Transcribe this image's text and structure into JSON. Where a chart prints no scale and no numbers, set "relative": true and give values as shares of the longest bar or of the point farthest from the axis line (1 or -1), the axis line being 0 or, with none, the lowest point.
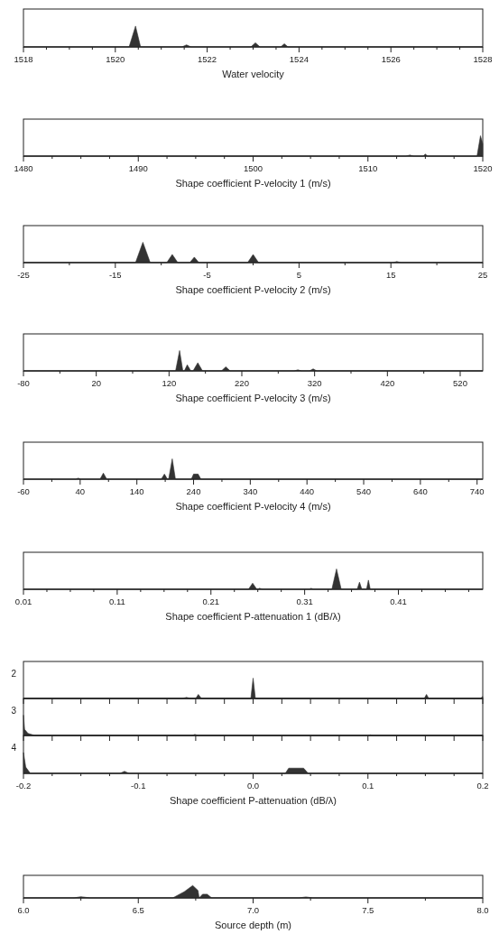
{
  "chart_data": [
    {
      "type": "area",
      "relative": true,
      "color": "#333333",
      "tick_labels": "x",
      "xlabel": "Water velocity",
      "xlim": [
        1518,
        1528
      ],
      "xticks": [
        1518,
        {
          "value": 1518.5,
          "label": null
        },
        {
          "value": 1519,
          "label": null
        },
        {
          "value": 1519.5,
          "label": null
        },
        1520,
        {
          "value": 1520.5,
          "label": null
        },
        {
          "value": 1521,
          "label": null
        },
        {
          "value": 1521.5,
          "label": null
        },
        1522,
        {
          "value": 1522.5,
          "label": null
        },
        {
          "value": 1523,
          "label": null
        },
        {
          "value": 1523.5,
          "label": null
        },
        1524,
        {
          "value": 1524.5,
          "label": null
        },
        {
          "value": 1525,
          "label": null
        },
        {
          "value": 1525.5,
          "label": null
        },
        1526,
        {
          "value": 1526.5,
          "label": null
        },
        {
          "value": 1527,
          "label": null
        },
        {
          "value": 1527.5,
          "label": null
        },
        1528
      ],
      "x": [
        1518,
        1520.3,
        1520.44,
        1520.55,
        1521.45,
        1521.55,
        1521.65,
        1522.95,
        1523.05,
        1523.15,
        1523.6,
        1523.68,
        1523.76,
        1528
      ],
      "values": [
        0,
        0,
        1,
        0,
        0,
        0.1,
        0,
        0,
        0.2,
        0,
        0,
        0.15,
        0,
        0
      ]
    },
    {
      "type": "area",
      "relative": true,
      "color": "#333333",
      "tick_labels": "x",
      "xlabel": "Shape coefficient P-velocity 1 (m/s)",
      "xlim": [
        1480,
        1520
      ],
      "xticks": [
        1480,
        {
          "value": 1482.5,
          "label": null
        },
        {
          "value": 1485,
          "label": null
        },
        {
          "value": 1487.5,
          "label": null
        },
        1490,
        {
          "value": 1492.5,
          "label": null
        },
        {
          "value": 1495,
          "label": null
        },
        {
          "value": 1497.5,
          "label": null
        },
        1500,
        {
          "value": 1502.5,
          "label": null
        },
        {
          "value": 1505,
          "label": null
        },
        {
          "value": 1507.5,
          "label": null
        },
        1510,
        {
          "value": 1512.5,
          "label": null
        },
        {
          "value": 1515,
          "label": null
        },
        {
          "value": 1517.5,
          "label": null
        },
        1520
      ],
      "x": [
        1480,
        1489.8,
        1490,
        1490.2,
        1513.3,
        1513.65,
        1514,
        1514.8,
        1515,
        1515.2,
        1519.5,
        1519.8,
        1520
      ],
      "values": [
        0,
        0,
        0.03,
        0,
        0,
        0.05,
        0,
        0,
        0.1,
        0,
        0,
        1,
        0.6
      ]
    },
    {
      "type": "area",
      "relative": true,
      "color": "#333333",
      "tick_labels": "x",
      "xlabel": "Shape coefficient P-velocity 2 (m/s)",
      "xlim": [
        -25,
        25
      ],
      "xticks": [
        -25,
        {
          "value": -20,
          "label": null
        },
        -15,
        {
          "value": -10,
          "label": null
        },
        -5,
        {
          "value": 0,
          "label": null
        },
        5,
        {
          "value": 10,
          "label": null
        },
        15,
        {
          "value": 20,
          "label": null
        },
        25
      ],
      "x": [
        -25,
        -12.8,
        -12,
        -11.2,
        -9.4,
        -8.8,
        -8.2,
        -6.9,
        -6.4,
        -5.9,
        -0.6,
        0,
        0.6,
        15.2,
        15.65,
        16.1,
        25
      ],
      "values": [
        0,
        0,
        1,
        0,
        0,
        0.4,
        0,
        0,
        0.27,
        0,
        0,
        0.4,
        0,
        0,
        0.05,
        0,
        0
      ]
    },
    {
      "type": "area",
      "relative": true,
      "color": "#333333",
      "tick_labels": "x",
      "xlabel": "Shape coefficient P-velocity 3 (m/s)",
      "xlim": [
        -80,
        551
      ],
      "xticks": [
        -80,
        {
          "value": -30,
          "label": null
        },
        20,
        {
          "value": 70,
          "label": null
        },
        120,
        {
          "value": 170,
          "label": null
        },
        220,
        {
          "value": 270,
          "label": null
        },
        320,
        {
          "value": 370,
          "label": null
        },
        420,
        {
          "value": 470,
          "label": null
        },
        520
      ],
      "x": [
        -80,
        129,
        134.5,
        139,
        141,
        145,
        150,
        153,
        159.5,
        166,
        192,
        198,
        204,
        292,
        297,
        302,
        313,
        318,
        323,
        551
      ],
      "values": [
        0,
        0,
        1,
        0,
        0,
        0.3,
        0,
        0,
        0.4,
        0,
        0,
        0.2,
        0,
        0,
        0.05,
        0,
        0,
        0.1,
        0,
        0
      ]
    },
    {
      "type": "area",
      "relative": true,
      "color": "#333333",
      "tick_labels": "x",
      "xlabel": "Shape coefficient P-velocity 4 (m/s)",
      "xlim": [
        -60,
        750
      ],
      "xticks": [
        -60,
        {
          "value": -10,
          "label": null
        },
        40,
        {
          "value": 90,
          "label": null
        },
        140,
        {
          "value": 190,
          "label": null
        },
        240,
        {
          "value": 290,
          "label": null
        },
        340,
        {
          "value": 390,
          "label": null
        },
        440,
        {
          "value": 490,
          "label": null
        },
        540,
        {
          "value": 590,
          "label": null
        },
        640,
        {
          "value": 690,
          "label": null
        },
        740
      ],
      "x": [
        -60,
        32,
        36.7,
        41,
        75,
        80.9,
        87,
        183,
        188.6,
        194,
        196,
        202.4,
        208,
        236,
        240,
        248,
        253,
        750
      ],
      "values": [
        0,
        0,
        0.05,
        0,
        0,
        0.3,
        0,
        0,
        0.25,
        0,
        0,
        1,
        0,
        0,
        0.25,
        0.25,
        0,
        0
      ]
    },
    {
      "type": "area",
      "relative": true,
      "color": "#333333",
      "tick_labels": "x",
      "xlabel": "Shape coefficient P-attenuation 1 (dB/λ)",
      "xlim": [
        0.01,
        0.5
      ],
      "xticks": [
        0.01,
        {
          "value": 0.035,
          "label": null
        },
        {
          "value": 0.06,
          "label": null
        },
        {
          "value": 0.085,
          "label": null
        },
        0.11,
        {
          "value": 0.135,
          "label": null
        },
        {
          "value": 0.16,
          "label": null
        },
        {
          "value": 0.185,
          "label": null
        },
        0.21,
        {
          "value": 0.235,
          "label": null
        },
        {
          "value": 0.26,
          "label": null
        },
        {
          "value": 0.285,
          "label": null
        },
        0.31,
        {
          "value": 0.335,
          "label": null
        },
        {
          "value": 0.36,
          "label": null
        },
        {
          "value": 0.385,
          "label": null
        },
        0.41,
        {
          "value": 0.435,
          "label": null
        },
        {
          "value": 0.46,
          "label": null
        },
        {
          "value": 0.485,
          "label": null
        }
      ],
      "x": [
        0.01,
        0.25,
        0.2545,
        0.259,
        0.26,
        0.262,
        0.265,
        0.315,
        0.317,
        0.319,
        0.339,
        0.344,
        0.349,
        0.366,
        0.3685,
        0.371,
        0.376,
        0.378,
        0.38,
        0.5
      ],
      "values": [
        0,
        0,
        0.3,
        0,
        0,
        0.05,
        0,
        0,
        0.05,
        0,
        0,
        1,
        0,
        0,
        0.35,
        0,
        0,
        0.45,
        0,
        0
      ]
    },
    {
      "type": "area",
      "relative": true,
      "color": "#333333",
      "tick_labels": false,
      "ylabel": "2",
      "xlim": [
        -0.2,
        0.2
      ],
      "xticks": [
        -0.2,
        -0.175,
        -0.15,
        -0.125,
        -0.1,
        -0.075,
        -0.05,
        -0.025,
        0,
        0.025,
        0.05,
        0.075,
        0.1,
        0.125,
        0.15,
        0.175,
        0.2
      ],
      "x": [
        -0.2,
        -0.062,
        -0.058,
        -0.054,
        -0.05,
        -0.0477,
        -0.045,
        -0.002,
        0,
        0.002,
        0.149,
        0.151,
        0.153,
        0.198,
        0.2
      ],
      "values": [
        0,
        0,
        0.05,
        0,
        0,
        0.2,
        0,
        0,
        1,
        0,
        0,
        0.2,
        0,
        0,
        0.1
      ]
    },
    {
      "type": "area",
      "relative": true,
      "color": "#333333",
      "tick_labels": false,
      "ylabel": "3",
      "xlim": [
        -0.2,
        0.2
      ],
      "xticks": [
        -0.2,
        -0.175,
        -0.15,
        -0.125,
        -0.1,
        -0.075,
        -0.05,
        -0.025,
        0,
        0.025,
        0.05,
        0.075,
        0.1,
        0.125,
        0.15,
        0.175,
        0.2
      ],
      "x": [
        -0.2,
        -0.199,
        -0.196,
        -0.19,
        -0.053,
        -0.0507,
        -0.048,
        0.1,
        0.102,
        0.104,
        0.2
      ],
      "values": [
        1,
        0.3,
        0.1,
        0,
        0,
        0.05,
        0,
        0,
        0.03,
        0,
        0
      ]
    },
    {
      "type": "area",
      "relative": true,
      "color": "#333333",
      "tick_labels": "x",
      "ylabel": "4",
      "xlabel": "Shape coefficient P-attenuation (dB/λ)",
      "xlim": [
        -0.2,
        0.2
      ],
      "xticks": [
        -0.2,
        {
          "value": -0.175,
          "label": null
        },
        {
          "value": -0.15,
          "label": null
        },
        {
          "value": -0.125,
          "label": null
        },
        -0.1,
        {
          "value": -0.075,
          "label": null
        },
        {
          "value": -0.05,
          "label": null
        },
        {
          "value": -0.025,
          "label": null
        },
        {
          "value": 0,
          "label": "0.0"
        },
        {
          "value": 0.025,
          "label": null
        },
        {
          "value": 0.05,
          "label": null
        },
        {
          "value": 0.075,
          "label": null
        },
        0.1,
        {
          "value": 0.125,
          "label": null
        },
        {
          "value": 0.15,
          "label": null
        },
        {
          "value": 0.175,
          "label": null
        },
        0.2
      ],
      "x": [
        -0.2,
        -0.198,
        -0.194,
        -0.116,
        -0.112,
        -0.108,
        0.028,
        0.031,
        0.044,
        0.048,
        0.2
      ],
      "values": [
        1,
        0.3,
        0,
        0,
        0.1,
        0,
        0,
        0.25,
        0.25,
        0,
        0
      ]
    },
    {
      "type": "area",
      "relative": true,
      "color": "#333333",
      "tick_labels": "x",
      "xlabel": "Source depth (m)",
      "xlim": [
        6,
        8
      ],
      "xticks": [
        {
          "value": 6,
          "label": "6.0"
        },
        {
          "value": 6.25,
          "label": null
        },
        {
          "value": 6.5,
          "label": "6.5"
        },
        {
          "value": 6.75,
          "label": null
        },
        {
          "value": 7,
          "label": "7.0"
        },
        {
          "value": 7.25,
          "label": null
        },
        {
          "value": 7.5,
          "label": "7.5"
        },
        {
          "value": 7.75,
          "label": null
        },
        {
          "value": 8,
          "label": "8.0"
        }
      ],
      "x": [
        6,
        6.22,
        6.25,
        6.29,
        6.65,
        6.7,
        6.737,
        6.76,
        6.765,
        6.78,
        6.8,
        6.82,
        7.2,
        7.23,
        7.26,
        8
      ],
      "values": [
        0,
        0,
        0.1,
        0,
        0,
        0.5,
        1,
        0.6,
        0,
        0.3,
        0.3,
        0,
        0,
        0.08,
        0,
        0
      ]
    }
  ]
}
